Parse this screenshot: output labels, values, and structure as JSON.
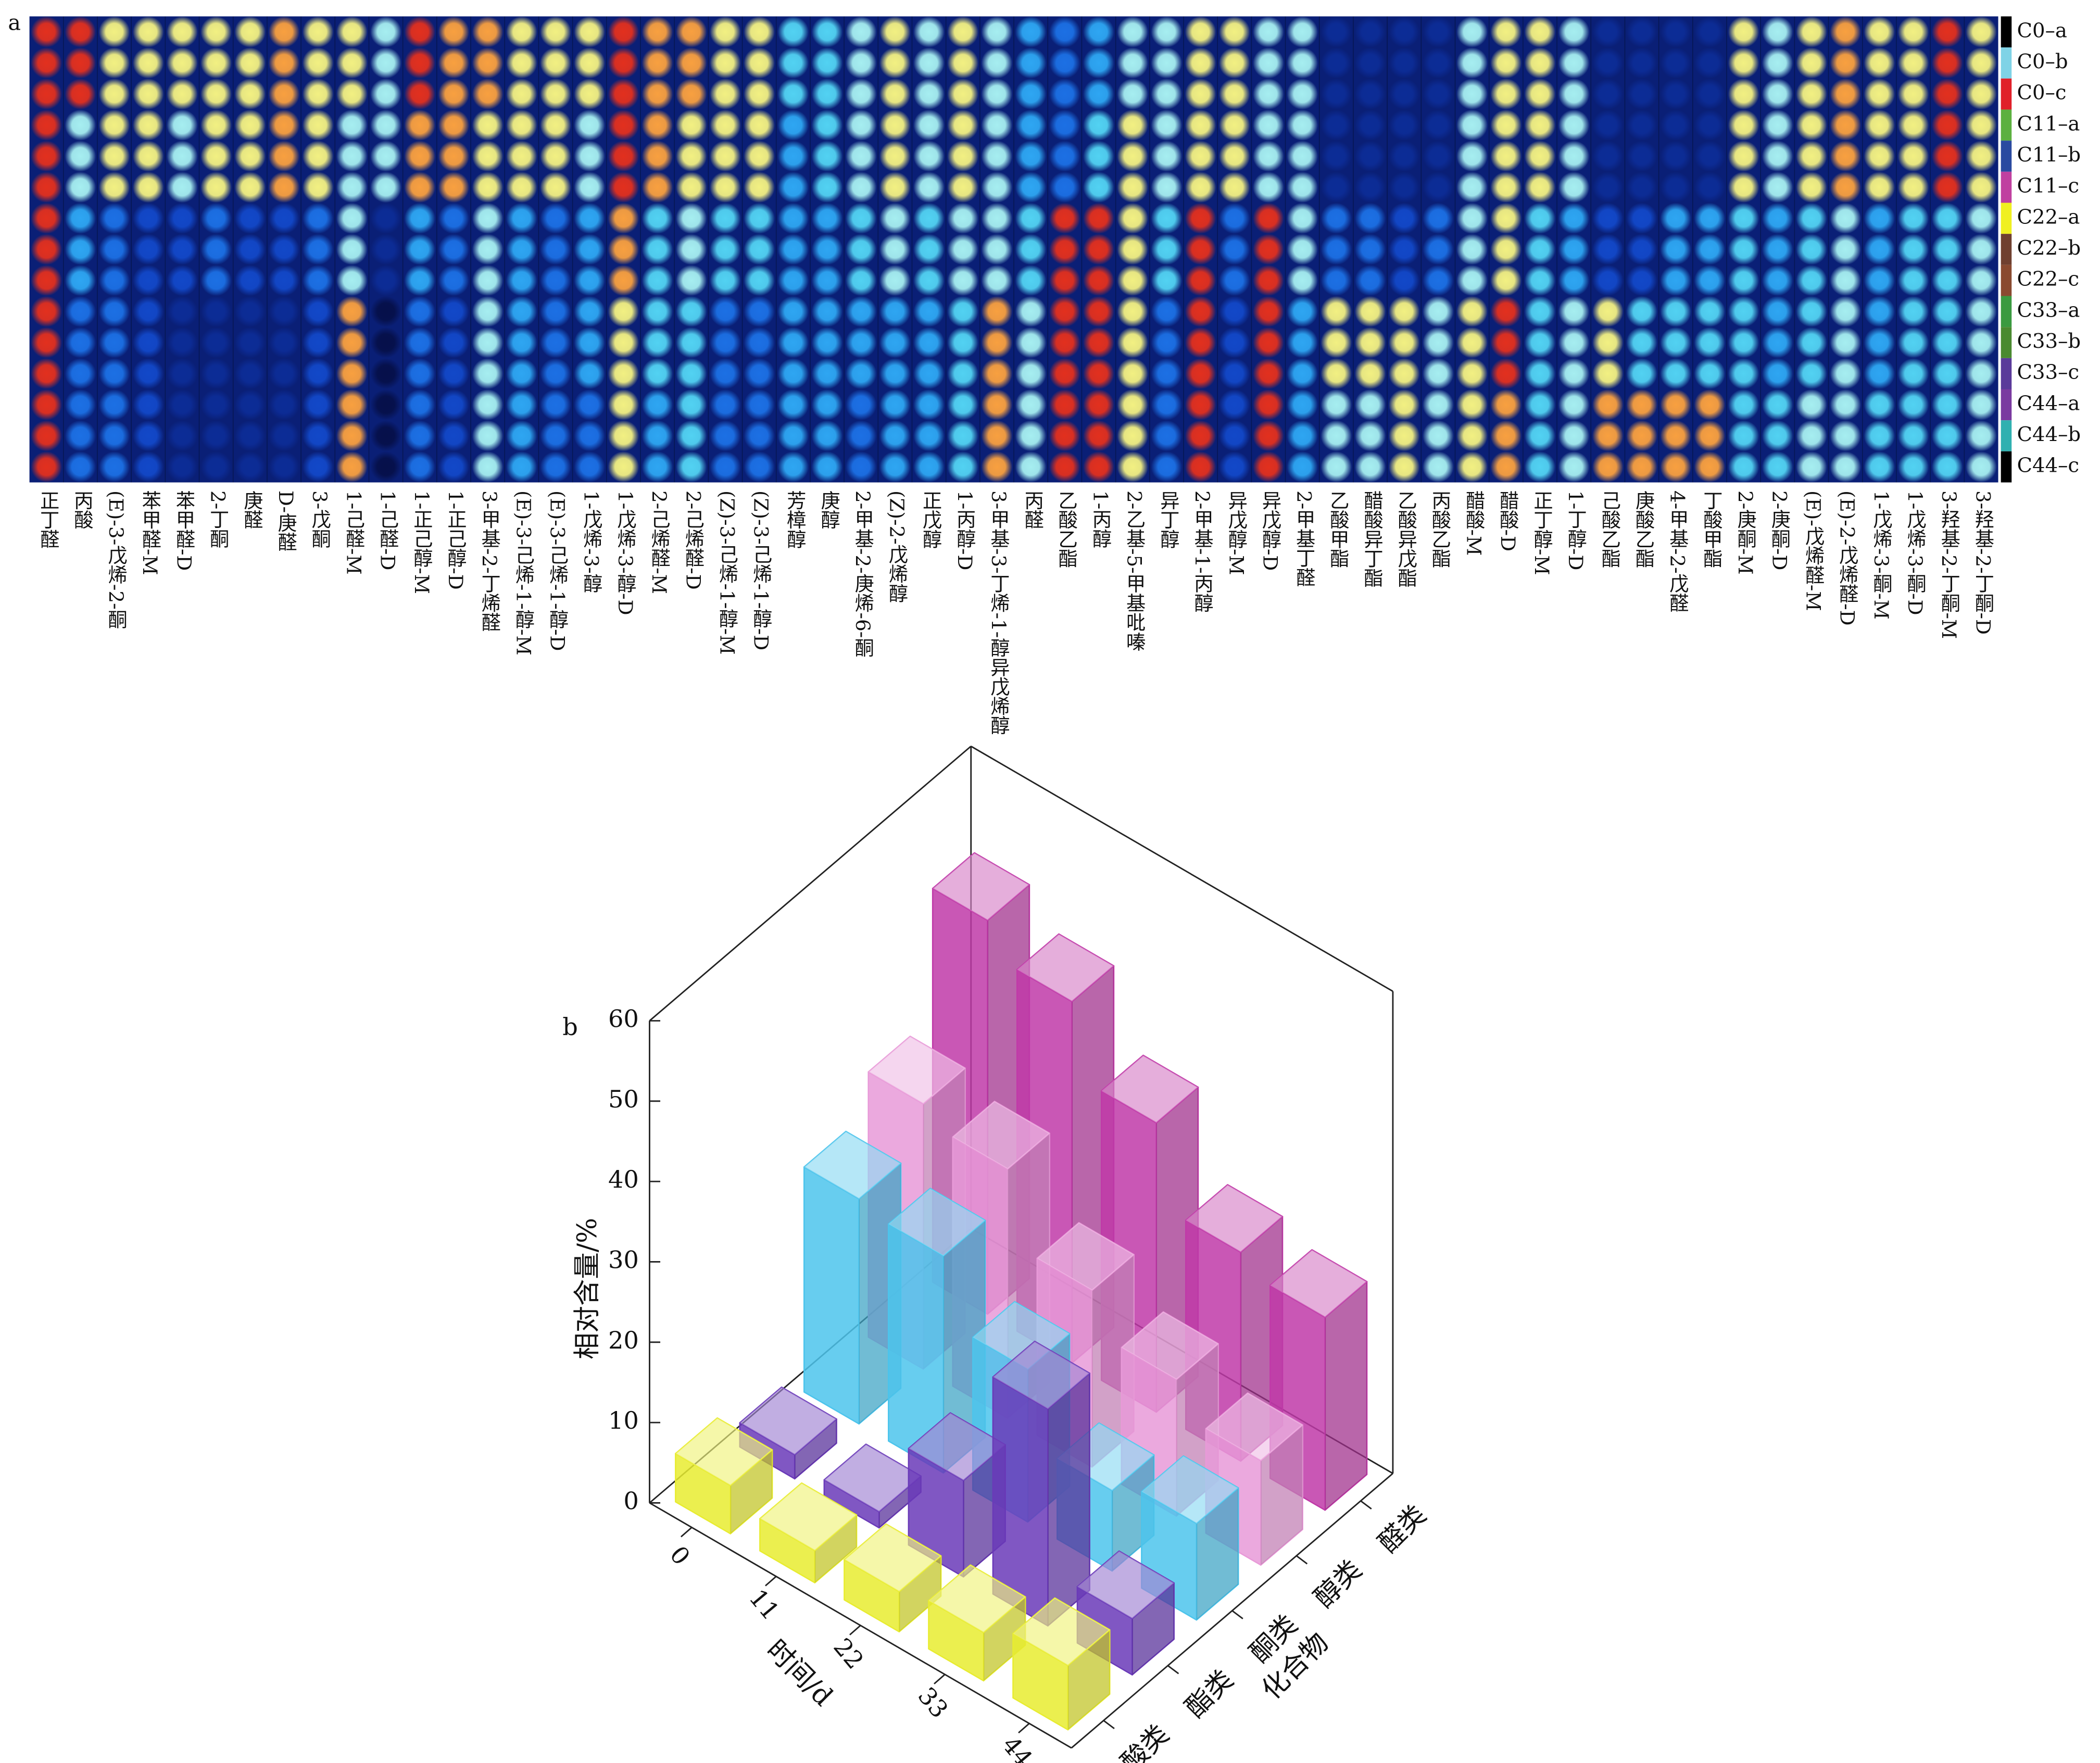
{
  "chart_data": [
    {
      "type": "heatmap",
      "label": "a",
      "categories": [
        "正丁醛",
        "丙酸",
        "(E)-3-戊烯-2-酮",
        "苯甲醛-M",
        "苯甲醛-D",
        "2-丁酮",
        "庚醛",
        "D-庚醛",
        "3-戊酮",
        "1-己醛-M",
        "1-己醛-D",
        "1-正己醇-M",
        "1-正己醇-D",
        "3-甲基-2-丁烯醛",
        "(E)-3-己烯-1-醇-M",
        "(E)-3-己烯-1-醇-D",
        "1-戊烯-3-醇",
        "1-戊烯-3-醇-D",
        "2-己烯醛-M",
        "2-己烯醛-D",
        "(Z)-3-己烯-1-醇-M",
        "(Z)-3-己烯-1-醇-D",
        "芳樟醇",
        "庚醇",
        "2-甲基-2-庚烯-6-酮",
        "(Z)-2-戊烯醇",
        "正戊醇",
        "1-丙醇-D",
        "3-甲基-3-丁烯-1-醇异戊烯醇",
        "丙醛",
        "乙酸乙酯",
        "1-丙醇",
        "2-乙基-5-甲基吡嗪",
        "异丁醇",
        "2-甲基-1-丙醇",
        "异戊醇-M",
        "异戊醇-D",
        "2-甲基丁醛",
        "乙酸甲酯",
        "醋酸异丁酯",
        "乙酸异戊酯",
        "丙酸乙酯",
        "醋酸-M",
        "醋酸-D",
        "正丁醇-M",
        "1-丁醇-D",
        "己酸乙酯",
        "庚酸乙酯",
        "4-甲基-2-戊醛",
        "丁酸甲酯",
        "2-庚酮-M",
        "2-庚酮-D",
        "(E)-戊烯醛-M",
        "(E)-2-戊烯醛-D",
        "1-戊烯-3-酮-M",
        "1-戊烯-3-酮-D",
        "3-羟基-2-丁酮-M",
        "3-羟基-2-丁酮-D"
      ],
      "clim": [
        0,
        9
      ],
      "colormap": [
        "#06104a",
        "#0c2c96",
        "#1248c8",
        "#1c70e4",
        "#2ea6f2",
        "#52d2f2",
        "#a6eef0",
        "#f2f082",
        "#f8a040",
        "#e2301e"
      ],
      "series": [
        {
          "name": "C0–a",
          "color": "#000000",
          "values": [
            9,
            9,
            7,
            7,
            7,
            7,
            7,
            8,
            7,
            7,
            6,
            9,
            8,
            8,
            7,
            7,
            7,
            9,
            8,
            8,
            7,
            7,
            5,
            5,
            6,
            7,
            6,
            7,
            6,
            4,
            3,
            4,
            6,
            6,
            7,
            7,
            6,
            6,
            1,
            1,
            1,
            1,
            6,
            7,
            7,
            6,
            1,
            1,
            1,
            1,
            7,
            6,
            7,
            8,
            7,
            7,
            9,
            7
          ]
        },
        {
          "name": "C0–b",
          "color": "#7fd3e6",
          "values": [
            9,
            9,
            7,
            7,
            7,
            7,
            7,
            8,
            7,
            7,
            6,
            9,
            8,
            8,
            7,
            7,
            7,
            9,
            8,
            8,
            7,
            7,
            5,
            5,
            6,
            7,
            6,
            7,
            6,
            4,
            3,
            4,
            6,
            6,
            7,
            7,
            6,
            6,
            1,
            1,
            1,
            1,
            6,
            7,
            7,
            6,
            1,
            1,
            1,
            1,
            7,
            6,
            7,
            8,
            7,
            7,
            9,
            7
          ]
        },
        {
          "name": "C0–c",
          "color": "#e0202a",
          "values": [
            9,
            9,
            7,
            7,
            7,
            7,
            7,
            8,
            7,
            7,
            6,
            9,
            8,
            8,
            7,
            7,
            7,
            9,
            8,
            8,
            7,
            7,
            5,
            5,
            6,
            7,
            6,
            7,
            6,
            4,
            3,
            4,
            6,
            6,
            7,
            7,
            6,
            6,
            1,
            1,
            1,
            1,
            6,
            7,
            7,
            6,
            1,
            1,
            1,
            1,
            7,
            6,
            7,
            8,
            7,
            7,
            9,
            7
          ]
        },
        {
          "name": "C11–a",
          "color": "#5cb040",
          "values": [
            9,
            6,
            7,
            7,
            6,
            7,
            7,
            8,
            7,
            6,
            6,
            8,
            8,
            7,
            7,
            7,
            6,
            9,
            8,
            7,
            7,
            7,
            4,
            5,
            6,
            7,
            6,
            7,
            6,
            4,
            3,
            5,
            7,
            6,
            7,
            7,
            6,
            6,
            1,
            1,
            1,
            1,
            6,
            7,
            7,
            6,
            1,
            1,
            1,
            1,
            7,
            6,
            7,
            8,
            7,
            7,
            9,
            7
          ]
        },
        {
          "name": "C11–b",
          "color": "#2a4aa0",
          "values": [
            9,
            6,
            7,
            7,
            6,
            7,
            7,
            8,
            7,
            6,
            6,
            8,
            8,
            7,
            7,
            7,
            6,
            9,
            8,
            7,
            7,
            7,
            4,
            5,
            6,
            7,
            6,
            7,
            6,
            4,
            3,
            5,
            7,
            6,
            7,
            7,
            6,
            6,
            1,
            1,
            1,
            1,
            6,
            7,
            7,
            6,
            1,
            1,
            1,
            1,
            7,
            6,
            7,
            8,
            7,
            7,
            9,
            7
          ]
        },
        {
          "name": "C11–c",
          "color": "#c040a0",
          "values": [
            9,
            6,
            7,
            7,
            6,
            7,
            7,
            8,
            7,
            6,
            6,
            8,
            8,
            7,
            7,
            7,
            6,
            9,
            8,
            7,
            7,
            7,
            4,
            5,
            6,
            7,
            6,
            7,
            6,
            4,
            3,
            5,
            7,
            6,
            7,
            7,
            6,
            6,
            1,
            1,
            1,
            1,
            6,
            7,
            7,
            6,
            1,
            1,
            1,
            1,
            7,
            6,
            7,
            8,
            7,
            7,
            9,
            7
          ]
        },
        {
          "name": "C22–a",
          "color": "#f0f020",
          "values": [
            9,
            4,
            3,
            2,
            2,
            3,
            2,
            2,
            3,
            6,
            1,
            4,
            3,
            6,
            4,
            3,
            4,
            8,
            5,
            6,
            5,
            5,
            4,
            4,
            5,
            6,
            5,
            6,
            6,
            5,
            9,
            9,
            7,
            5,
            9,
            3,
            9,
            6,
            3,
            3,
            2,
            3,
            6,
            7,
            5,
            4,
            2,
            2,
            4,
            4,
            5,
            4,
            5,
            6,
            4,
            5,
            5,
            6
          ]
        },
        {
          "name": "C22–b",
          "color": "#704030",
          "values": [
            9,
            4,
            3,
            2,
            2,
            3,
            2,
            2,
            3,
            6,
            1,
            4,
            3,
            6,
            4,
            3,
            4,
            8,
            5,
            6,
            5,
            5,
            4,
            4,
            5,
            6,
            5,
            6,
            6,
            5,
            9,
            9,
            7,
            5,
            9,
            3,
            9,
            6,
            3,
            3,
            2,
            3,
            6,
            7,
            5,
            4,
            2,
            2,
            4,
            4,
            5,
            4,
            5,
            6,
            4,
            5,
            5,
            6
          ]
        },
        {
          "name": "C22–c",
          "color": "#8a4a30",
          "values": [
            9,
            4,
            3,
            2,
            2,
            3,
            2,
            2,
            3,
            6,
            1,
            4,
            3,
            6,
            4,
            3,
            4,
            8,
            5,
            6,
            5,
            5,
            4,
            4,
            5,
            6,
            5,
            6,
            6,
            5,
            9,
            9,
            7,
            5,
            9,
            3,
            9,
            6,
            3,
            3,
            2,
            3,
            6,
            7,
            5,
            4,
            2,
            2,
            4,
            4,
            5,
            4,
            5,
            6,
            4,
            5,
            5,
            6
          ]
        },
        {
          "name": "C33–a",
          "color": "#3a9a40",
          "values": [
            9,
            3,
            3,
            2,
            1,
            1,
            1,
            1,
            2,
            8,
            0,
            3,
            2,
            6,
            4,
            3,
            4,
            7,
            5,
            5,
            3,
            3,
            4,
            4,
            4,
            4,
            4,
            5,
            8,
            6,
            9,
            9,
            7,
            3,
            9,
            2,
            9,
            4,
            7,
            7,
            7,
            6,
            7,
            9,
            5,
            6,
            7,
            5,
            5,
            5,
            5,
            4,
            5,
            6,
            4,
            5,
            5,
            6
          ]
        },
        {
          "name": "C33–b",
          "color": "#4a8a30",
          "values": [
            9,
            3,
            3,
            2,
            1,
            1,
            1,
            1,
            2,
            8,
            0,
            3,
            2,
            6,
            4,
            3,
            4,
            7,
            5,
            5,
            3,
            3,
            4,
            4,
            4,
            4,
            4,
            5,
            8,
            6,
            9,
            9,
            7,
            3,
            9,
            2,
            9,
            4,
            7,
            7,
            7,
            6,
            7,
            9,
            5,
            6,
            7,
            5,
            5,
            5,
            5,
            4,
            5,
            6,
            4,
            5,
            5,
            6
          ]
        },
        {
          "name": "C33–c",
          "color": "#5a3a9a",
          "values": [
            9,
            3,
            3,
            2,
            1,
            1,
            1,
            1,
            2,
            8,
            0,
            3,
            2,
            6,
            4,
            3,
            4,
            7,
            5,
            5,
            3,
            3,
            4,
            4,
            4,
            4,
            4,
            5,
            8,
            6,
            9,
            9,
            7,
            3,
            9,
            2,
            9,
            4,
            7,
            7,
            7,
            6,
            7,
            9,
            5,
            6,
            7,
            5,
            5,
            5,
            5,
            4,
            5,
            6,
            4,
            5,
            5,
            6
          ]
        },
        {
          "name": "C44–a",
          "color": "#7a3aa0",
          "values": [
            9,
            3,
            3,
            2,
            1,
            1,
            1,
            1,
            2,
            8,
            0,
            3,
            2,
            6,
            4,
            3,
            3,
            7,
            4,
            5,
            3,
            3,
            4,
            4,
            3,
            4,
            4,
            5,
            8,
            6,
            9,
            9,
            7,
            3,
            9,
            2,
            9,
            4,
            6,
            6,
            7,
            6,
            7,
            8,
            5,
            6,
            8,
            8,
            8,
            8,
            5,
            5,
            6,
            6,
            5,
            5,
            5,
            6
          ]
        },
        {
          "name": "C44–b",
          "color": "#30b0b0",
          "values": [
            9,
            3,
            3,
            2,
            1,
            1,
            1,
            1,
            2,
            8,
            0,
            3,
            2,
            6,
            4,
            3,
            3,
            7,
            4,
            5,
            3,
            3,
            4,
            4,
            3,
            4,
            4,
            5,
            8,
            6,
            9,
            9,
            7,
            3,
            9,
            2,
            9,
            4,
            6,
            6,
            7,
            6,
            7,
            8,
            5,
            6,
            8,
            8,
            8,
            8,
            5,
            5,
            6,
            6,
            5,
            5,
            5,
            6
          ]
        },
        {
          "name": "C44–c",
          "color": "#000000",
          "values": [
            9,
            3,
            3,
            2,
            1,
            1,
            1,
            1,
            2,
            8,
            0,
            3,
            2,
            6,
            4,
            3,
            3,
            7,
            4,
            5,
            3,
            3,
            4,
            4,
            3,
            4,
            4,
            5,
            8,
            6,
            9,
            9,
            7,
            3,
            9,
            2,
            9,
            4,
            6,
            6,
            7,
            6,
            7,
            8,
            5,
            6,
            8,
            8,
            8,
            8,
            5,
            5,
            6,
            6,
            5,
            5,
            5,
            6
          ]
        }
      ]
    },
    {
      "type": "bar3d",
      "label": "b",
      "zlabel": "相对含量/%",
      "xlabel": "时间/d",
      "ylabel": "化合物",
      "x": [
        0,
        11,
        22,
        33,
        44
      ],
      "categories": [
        "酸类",
        "酯类",
        "酮类",
        "醇类",
        "醛类"
      ],
      "zlim": [
        0,
        60
      ],
      "zticks": [
        0,
        10,
        20,
        30,
        40,
        50,
        60
      ],
      "series": [
        {
          "color": "#e8ec30",
          "values": [
            6,
            4,
            5,
            6,
            8
          ]
        },
        {
          "color": "#6a3ab8",
          "values": [
            3,
            2,
            12,
            27,
            7
          ]
        },
        {
          "color": "#4cc4ec",
          "values": [
            28,
            27,
            19,
            10,
            12
          ]
        },
        {
          "color": "#e89ad8",
          "values": [
            33,
            31,
            22,
            17,
            13
          ]
        },
        {
          "color": "#c03aa8",
          "values": [
            49,
            45,
            36,
            26,
            24
          ]
        }
      ]
    }
  ]
}
